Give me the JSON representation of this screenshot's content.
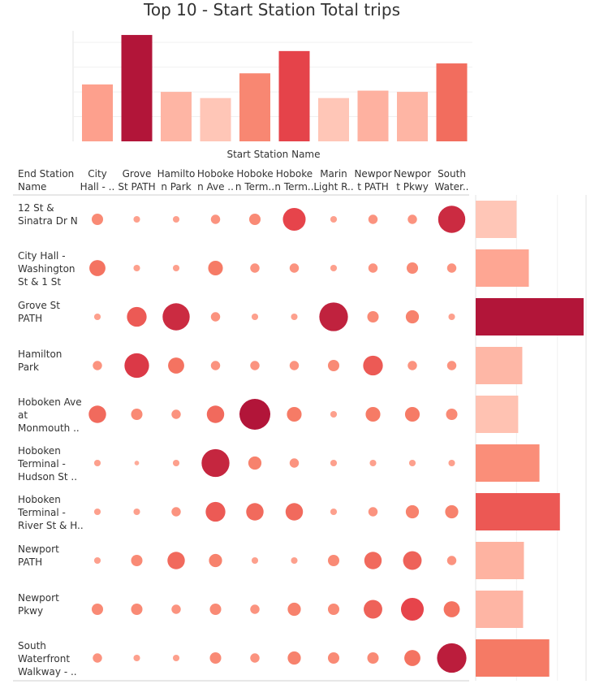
{
  "chart_data": {
    "title": "Top 10 - Start Station Total trips",
    "x_axis_title": "Start Station Name",
    "row_header": [
      "End Station",
      "Name"
    ],
    "start_stations": [
      {
        "name": "City Hall",
        "label_lines": [
          "City",
          "Hall - .."
        ]
      },
      {
        "name": "Grove St PATH",
        "label_lines": [
          "Grove",
          "St PATH"
        ]
      },
      {
        "name": "Hamilton Park",
        "label_lines": [
          "Hamilto",
          "n Park"
        ]
      },
      {
        "name": "Hoboken Ave",
        "label_lines": [
          "Hoboke",
          "n Ave .."
        ]
      },
      {
        "name": "Hoboken Terminal - Hudson St",
        "label_lines": [
          "Hoboke",
          "n Term.."
        ]
      },
      {
        "name": "Hoboken Terminal - River St",
        "label_lines": [
          "Hoboke",
          "n Term.."
        ]
      },
      {
        "name": "Marin Light Rail",
        "label_lines": [
          "Marin",
          "Light R.."
        ]
      },
      {
        "name": "Newport PATH",
        "label_lines": [
          "Newpor",
          "t PATH"
        ]
      },
      {
        "name": "Newport Pkwy",
        "label_lines": [
          "Newpor",
          "t Pkwy"
        ]
      },
      {
        "name": "South Waterfront",
        "label_lines": [
          "South",
          "Water.."
        ]
      }
    ],
    "start_totals": [
      46,
      86,
      40,
      35,
      55,
      73,
      35,
      41,
      40,
      63
    ],
    "end_stations": [
      {
        "name": "12 St & Sinatra Dr N",
        "label_lines": [
          "12 St &",
          "Sinatra Dr N"
        ]
      },
      {
        "name": "City Hall - Washington St & 1 St",
        "label_lines": [
          "City Hall -",
          "Washington",
          "St & 1 St"
        ]
      },
      {
        "name": "Grove St PATH",
        "label_lines": [
          "Grove St",
          "PATH"
        ]
      },
      {
        "name": "Hamilton Park",
        "label_lines": [
          "Hamilton",
          "Park"
        ]
      },
      {
        "name": "Hoboken Ave at Monmouth",
        "label_lines": [
          "Hoboken Ave",
          "at",
          "Monmouth .."
        ]
      },
      {
        "name": "Hoboken Terminal - Hudson St",
        "label_lines": [
          "Hoboken",
          "Terminal -",
          "Hudson St .."
        ]
      },
      {
        "name": "Hoboken Terminal - River St & Hudson Pl",
        "label_lines": [
          "Hoboken",
          "Terminal -",
          "River St & H.."
        ]
      },
      {
        "name": "Newport PATH",
        "label_lines": [
          "Newport",
          "PATH"
        ]
      },
      {
        "name": "Newport Pkwy",
        "label_lines": [
          "Newport",
          "Pkwy"
        ]
      },
      {
        "name": "South Waterfront Walkway",
        "label_lines": [
          "South",
          "Waterfront",
          "Walkway - .."
        ]
      }
    ],
    "end_totals": [
      50,
      65,
      132,
      57,
      52,
      78,
      103,
      59,
      58,
      90
    ],
    "end_totals_axis_max": 135,
    "trip_matrix": [
      [
        3,
        1,
        1,
        2,
        3,
        12,
        1,
        2,
        2,
        17
      ],
      [
        6,
        1,
        1,
        5,
        2,
        2,
        1,
        2,
        3,
        2
      ],
      [
        1,
        9,
        17,
        2,
        1,
        1,
        19,
        3,
        4,
        1
      ],
      [
        2,
        14,
        6,
        2,
        2,
        2,
        3,
        9,
        2,
        2
      ],
      [
        7,
        3,
        2,
        7,
        22,
        5,
        1,
        5,
        5,
        3
      ],
      [
        1,
        0.5,
        1,
        18,
        4,
        2,
        1,
        1,
        1,
        1
      ],
      [
        1,
        1,
        2,
        9,
        7,
        7,
        1,
        2,
        4,
        4
      ],
      [
        1,
        3,
        7,
        4,
        1,
        1,
        3,
        7,
        8,
        2
      ],
      [
        3,
        3,
        2,
        3,
        2,
        4,
        3,
        8,
        12,
        6
      ],
      [
        2,
        1,
        1,
        3,
        2,
        4,
        3,
        3,
        6,
        20
      ]
    ],
    "color_scale": [
      "#ffc6b7",
      "#fd9a86",
      "#f57863",
      "#e5424a",
      "#b21539"
    ]
  }
}
